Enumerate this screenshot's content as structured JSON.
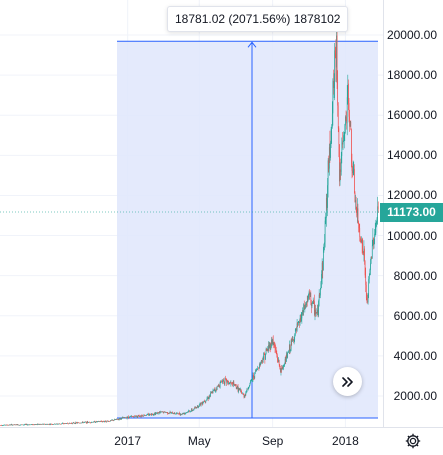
{
  "tooltip": {
    "text": "18781.02 (2071.56%) 1878102"
  },
  "price_badge": {
    "value": "11173.00",
    "color": "#26a69a"
  },
  "colors": {
    "up": "#26a69a",
    "down": "#ef5350",
    "measure_fill": "#dfe6fb",
    "measure_line": "#2962ff",
    "grid": "#f0f3fa"
  },
  "icons": {
    "scroll": "double-chevron-right-icon",
    "settings": "gear-icon"
  },
  "chart_data": {
    "type": "candlestick",
    "y_axis": {
      "labels": [
        "2000.00",
        "4000.00",
        "6000.00",
        "8000.00",
        "10000.00",
        "12000.00",
        "14000.00",
        "16000.00",
        "18000.00",
        "20000.00"
      ],
      "ylim": [
        0,
        20700
      ]
    },
    "x_axis": {
      "labels": [
        "2017",
        "May",
        "Sep",
        "2018"
      ]
    },
    "measure": {
      "start_price": 906,
      "end_price": 19687,
      "change": 18781.02,
      "change_percent": 2071.56
    },
    "series_points": [
      [
        "2016-06-01",
        550
      ],
      [
        "2016-09-01",
        600
      ],
      [
        "2016-12-01",
        750
      ],
      [
        "2017-01-01",
        950
      ],
      [
        "2017-02-01",
        1050
      ],
      [
        "2017-03-01",
        1200
      ],
      [
        "2017-04-01",
        1100
      ],
      [
        "2017-04-20",
        1300
      ],
      [
        "2017-05-15",
        1900
      ],
      [
        "2017-06-10",
        2800
      ],
      [
        "2017-07-01",
        2500
      ],
      [
        "2017-07-15",
        2000
      ],
      [
        "2017-08-05",
        3300
      ],
      [
        "2017-09-01",
        4800
      ],
      [
        "2017-09-15",
        3200
      ],
      [
        "2017-10-10",
        5200
      ],
      [
        "2017-11-01",
        7000
      ],
      [
        "2017-11-15",
        6000
      ],
      [
        "2017-11-25",
        9000
      ],
      [
        "2017-12-10",
        16500
      ],
      [
        "2017-12-17",
        19600
      ],
      [
        "2017-12-22",
        13000
      ],
      [
        "2017-12-28",
        14500
      ],
      [
        "2018-01-06",
        17000
      ],
      [
        "2018-01-12",
        13500
      ],
      [
        "2018-01-20",
        11000
      ],
      [
        "2018-02-01",
        9000
      ],
      [
        "2018-02-06",
        6500
      ],
      [
        "2018-02-15",
        9500
      ],
      [
        "2018-02-25",
        11173
      ]
    ]
  }
}
